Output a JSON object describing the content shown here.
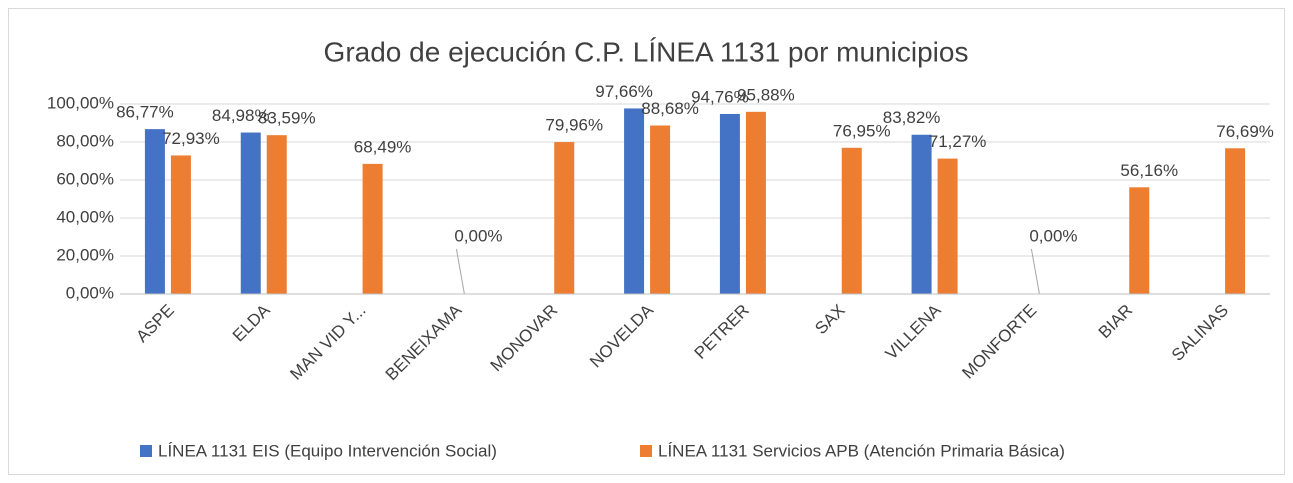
{
  "chart_data": {
    "type": "bar",
    "title": "Grado de ejecución C.P. LÍNEA 1131 por municipios",
    "categories": [
      "ASPE",
      "ELDA",
      "MAN VID Y...",
      "BENEIXAMA",
      "MONOVAR",
      "NOVELDA",
      "PETRER",
      "SAX",
      "VILLENA",
      "MONFORTE",
      "BIAR",
      "SALINAS"
    ],
    "series": [
      {
        "name": "LÍNEA 1131 EIS (Equipo Intervención Social)",
        "color": "#4472c4",
        "values": [
          86.77,
          84.98,
          null,
          null,
          null,
          97.66,
          94.76,
          null,
          83.82,
          null,
          null,
          null
        ],
        "value_labels": [
          "86,77%",
          "84,98%",
          null,
          null,
          null,
          "97,66%",
          "94,76%",
          null,
          "83,82%",
          null,
          null,
          null
        ]
      },
      {
        "name": "LÍNEA 1131 Servicios APB (Atención Primaria Básica)",
        "color": "#ed7d31",
        "values": [
          72.93,
          83.59,
          68.49,
          0,
          79.96,
          88.68,
          95.88,
          76.95,
          71.27,
          0,
          56.16,
          76.69
        ],
        "value_labels": [
          "72,93%",
          "83,59%",
          "68,49%",
          "0,00%",
          "79,96%",
          "88,68%",
          "95,88%",
          "76,95%",
          "71,27%",
          "0,00%",
          "56,16%",
          "76,69%"
        ]
      }
    ],
    "ylim": [
      0,
      100
    ],
    "yticks": [
      {
        "value": 0,
        "label": "0,00%"
      },
      {
        "value": 20,
        "label": "20,00%"
      },
      {
        "value": 40,
        "label": "40,00%"
      },
      {
        "value": 60,
        "label": "60,00%"
      },
      {
        "value": 80,
        "label": "80,00%"
      },
      {
        "value": 100,
        "label": "100,00%"
      }
    ],
    "grid": true,
    "legend": "bottom"
  }
}
